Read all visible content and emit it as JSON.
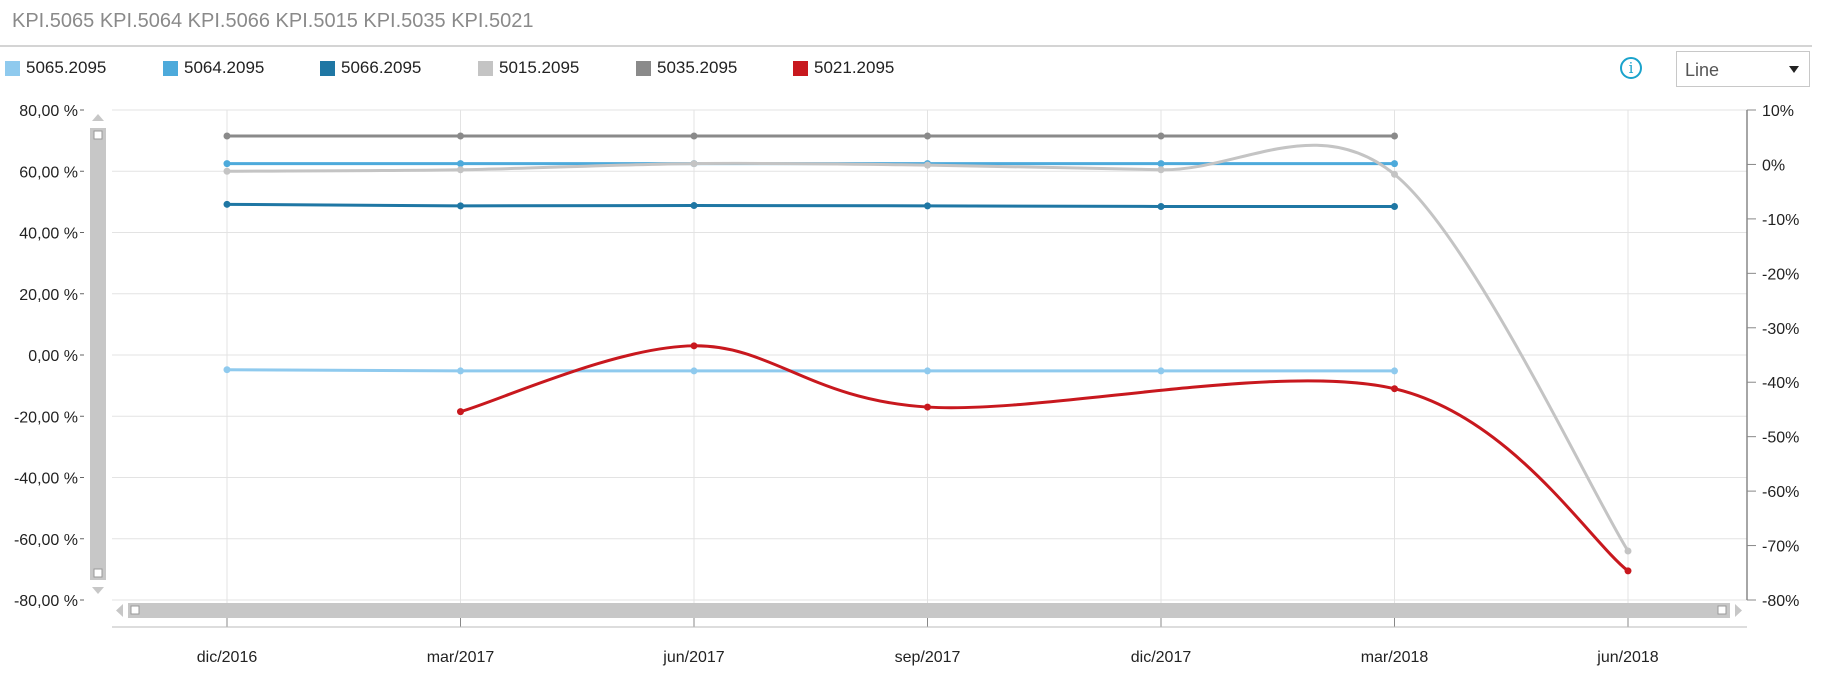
{
  "header": {
    "title": "KPI.5065 KPI.5064 KPI.5066 KPI.5015 KPI.5035 KPI.5021"
  },
  "toolbar": {
    "chart_type": "Line",
    "info_icon": "info-icon",
    "dropdown_icon": "chevron-down-icon"
  },
  "chart_data": {
    "type": "line",
    "x": [
      "dic/2016",
      "mar/2017",
      "jun/2017",
      "sep/2017",
      "dic/2017",
      "mar/2018",
      "jun/2018"
    ],
    "legend": "top",
    "grid": true,
    "y_left": {
      "range": [
        -80,
        80
      ],
      "ticks": [
        "80,00 %",
        "60,00 %",
        "40,00 %",
        "20,00 %",
        "0,00 %",
        "-20,00 %",
        "-40,00 %",
        "-60,00 %",
        "-80,00 %"
      ]
    },
    "y_right": {
      "range": [
        -80,
        10
      ],
      "ticks": [
        "10%",
        "0%",
        "-10%",
        "-20%",
        "-30%",
        "-40%",
        "-50%",
        "-60%",
        "-70%",
        "-80%"
      ]
    },
    "series": [
      {
        "name": "5065.2095",
        "color": "#8fcaee",
        "axis": "left",
        "smooth": false,
        "values": [
          -4.8,
          -5.2,
          -5.2,
          -5.2,
          -5.2,
          -5.2,
          null
        ]
      },
      {
        "name": "5064.2095",
        "color": "#4daadb",
        "axis": "left",
        "smooth": false,
        "values": [
          62.5,
          62.5,
          62.5,
          62.5,
          62.5,
          62.5,
          null
        ]
      },
      {
        "name": "5066.2095",
        "color": "#1f77a4",
        "axis": "left",
        "smooth": false,
        "values": [
          49.2,
          48.7,
          48.8,
          48.7,
          48.5,
          48.5,
          null
        ]
      },
      {
        "name": "5015.2095",
        "color": "#c4c4c4",
        "axis": "left",
        "smooth": true,
        "values": [
          60.0,
          60.5,
          62.5,
          62.0,
          60.5,
          59.0,
          -64.0
        ]
      },
      {
        "name": "5035.2095",
        "color": "#8a8a8a",
        "axis": "left",
        "smooth": false,
        "values": [
          71.5,
          71.5,
          71.5,
          71.5,
          71.5,
          71.5,
          null
        ]
      },
      {
        "name": "5021.2095",
        "color": "#c8181e",
        "axis": "left",
        "smooth": true,
        "values": [
          null,
          -18.5,
          3.0,
          -17.0,
          null,
          -11.0,
          -70.5
        ]
      }
    ]
  }
}
